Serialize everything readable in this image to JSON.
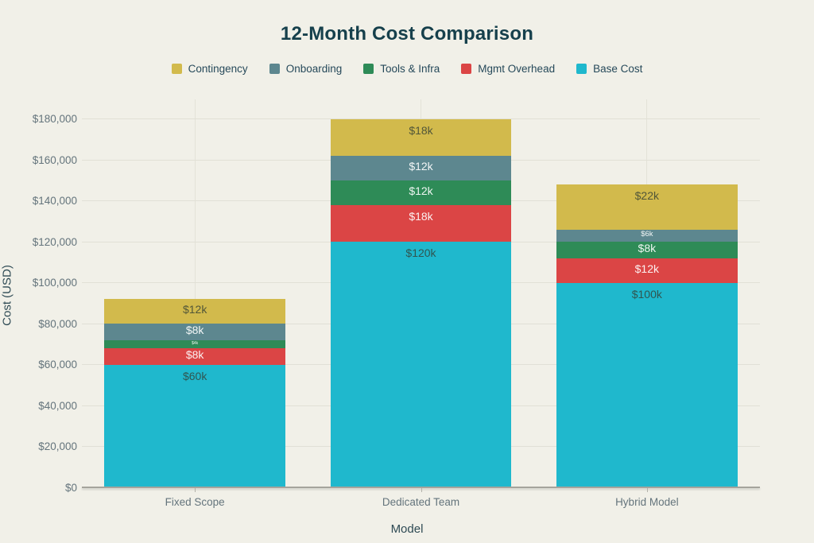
{
  "title": "12-Month Cost Comparison",
  "colors": {
    "background": "#F1F0E8",
    "grid": "#E1E0D6",
    "axis_line": "#A5A49C",
    "title_text": "#16404C",
    "tick_text": "#64747C",
    "axis_title_text": "#2E4A54",
    "label_dark": "rgba(52,63,52,0.82)",
    "label_light": "rgba(255,255,255,0.92)"
  },
  "legend": [
    {
      "label": "Contingency",
      "color": "#D2BA4C"
    },
    {
      "label": "Onboarding",
      "color": "#5D878F"
    },
    {
      "label": "Tools & Infra",
      "color": "#2E8B57"
    },
    {
      "label": "Mgmt Overhead",
      "color": "#DB4545"
    },
    {
      "label": "Base Cost",
      "color": "#1FB8CD"
    }
  ],
  "chart_data": {
    "type": "bar",
    "stacked": true,
    "title": "12-Month Cost Comparison",
    "xlabel": "Model",
    "ylabel": "Cost (USD)",
    "categories": [
      "Fixed Scope",
      "Dedicated Team",
      "Hybrid Model"
    ],
    "series": [
      {
        "name": "Base Cost",
        "color": "#1FB8CD",
        "values": [
          60000,
          120000,
          100000
        ],
        "labels": [
          "$60k",
          "$120k",
          "$100k"
        ],
        "label_style": "dark"
      },
      {
        "name": "Mgmt Overhead",
        "color": "#DB4545",
        "values": [
          8000,
          18000,
          12000
        ],
        "labels": [
          "$8k",
          "$18k",
          "$12k"
        ],
        "label_style": "light"
      },
      {
        "name": "Tools & Infra",
        "color": "#2E8B57",
        "values": [
          4000,
          12000,
          8000
        ],
        "labels": [
          "$4k",
          "$12k",
          "$8k"
        ],
        "label_style": "light"
      },
      {
        "name": "Onboarding",
        "color": "#5D878F",
        "values": [
          8000,
          12000,
          6000
        ],
        "labels": [
          "$8k",
          "$12k",
          "$6k"
        ],
        "label_style": "light"
      },
      {
        "name": "Contingency",
        "color": "#D2BA4C",
        "values": [
          12000,
          18000,
          22000
        ],
        "labels": [
          "$12k",
          "$18k",
          "$22k"
        ],
        "label_style": "dark"
      }
    ],
    "totals": [
      92000,
      180000,
      148000
    ],
    "ylim": [
      0,
      180000
    ],
    "ytick_step": 20000,
    "ytick_labels": [
      "$0",
      "$20,000",
      "$40,000",
      "$60,000",
      "$80,000",
      "$100,000",
      "$120,000",
      "$140,000",
      "$160,000",
      "$180,000"
    ],
    "grid": true,
    "legend_position": "top-center"
  }
}
